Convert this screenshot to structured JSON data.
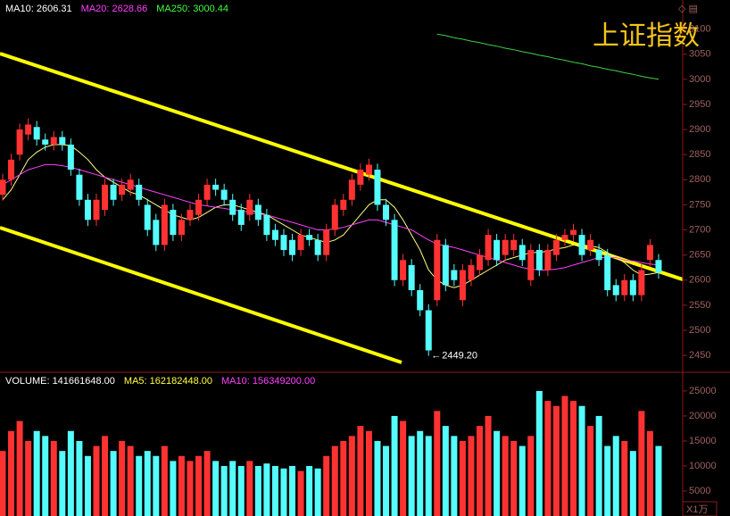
{
  "chart_data": [
    {
      "type": "candlestick",
      "title": "上证指数",
      "legend": [
        {
          "text": "MA10: 2606.31",
          "color": "#ffffff"
        },
        {
          "text": "MA20: 2628.66",
          "color": "#ff40ff"
        },
        {
          "text": "MA250: 3000.44",
          "color": "#40ff40"
        }
      ],
      "up_color": "#ff3232",
      "down_color": "#54fcfc",
      "open": [
        2770,
        2800,
        2850,
        2890,
        2905,
        2880,
        2870,
        2885,
        2870,
        2810,
        2760,
        2720,
        2740,
        2790,
        2770,
        2780,
        2790,
        2750,
        2720,
        2670,
        2740,
        2690,
        2720,
        2730,
        2760,
        2790,
        2780,
        2760,
        2740,
        2730,
        2750,
        2730,
        2700,
        2690,
        2680,
        2660,
        2690,
        2680,
        2650,
        2700,
        2740,
        2760,
        2790,
        2810,
        2820,
        2750,
        2720,
        2600,
        2630,
        2580,
        2540,
        2560,
        2670,
        2620,
        2560,
        2600,
        2620,
        2640,
        2680,
        2650,
        2660,
        2670,
        2600,
        2660,
        2620,
        2650,
        2680,
        2690,
        2690,
        2660,
        2660,
        2650,
        2590,
        2570,
        2600,
        2570,
        2640,
        2640
      ],
      "high": [
        2812,
        2852,
        2912,
        2922,
        2917,
        2892,
        2897,
        2897,
        2882,
        2822,
        2772,
        2772,
        2802,
        2802,
        2802,
        2812,
        2802,
        2762,
        2732,
        2762,
        2752,
        2732,
        2752,
        2772,
        2802,
        2802,
        2792,
        2772,
        2752,
        2772,
        2762,
        2742,
        2712,
        2702,
        2692,
        2702,
        2702,
        2692,
        2712,
        2762,
        2772,
        2812,
        2832,
        2842,
        2832,
        2762,
        2732,
        2652,
        2642,
        2592,
        2552,
        2692,
        2682,
        2632,
        2632,
        2642,
        2662,
        2702,
        2692,
        2692,
        2692,
        2682,
        2672,
        2672,
        2672,
        2692,
        2702,
        2712,
        2702,
        2692,
        2672,
        2662,
        2602,
        2612,
        2612,
        2632,
        2682,
        2652
      ],
      "low": [
        2758,
        2788,
        2838,
        2878,
        2868,
        2858,
        2858,
        2858,
        2808,
        2748,
        2708,
        2708,
        2728,
        2748,
        2758,
        2768,
        2748,
        2688,
        2658,
        2658,
        2678,
        2678,
        2708,
        2718,
        2748,
        2768,
        2748,
        2718,
        2698,
        2718,
        2708,
        2678,
        2668,
        2648,
        2638,
        2648,
        2668,
        2638,
        2638,
        2688,
        2728,
        2748,
        2778,
        2798,
        2738,
        2708,
        2588,
        2588,
        2568,
        2528,
        2449.2,
        2548,
        2578,
        2588,
        2548,
        2588,
        2608,
        2628,
        2628,
        2638,
        2648,
        2628,
        2588,
        2608,
        2608,
        2638,
        2668,
        2678,
        2638,
        2648,
        2628,
        2568,
        2558,
        2558,
        2558,
        2558,
        2628,
        2603
      ],
      "close": [
        2800,
        2840,
        2900,
        2910,
        2880,
        2870,
        2885,
        2870,
        2820,
        2760,
        2720,
        2760,
        2790,
        2760,
        2790,
        2800,
        2760,
        2700,
        2670,
        2750,
        2690,
        2720,
        2740,
        2760,
        2790,
        2780,
        2760,
        2730,
        2710,
        2760,
        2720,
        2690,
        2680,
        2660,
        2650,
        2690,
        2680,
        2650,
        2700,
        2750,
        2760,
        2800,
        2820,
        2830,
        2750,
        2720,
        2600,
        2640,
        2580,
        2540,
        2460,
        2680,
        2590,
        2600,
        2620,
        2630,
        2650,
        2690,
        2640,
        2680,
        2680,
        2640,
        2660,
        2620,
        2660,
        2680,
        2690,
        2700,
        2650,
        2680,
        2640,
        2580,
        2570,
        2600,
        2570,
        2620,
        2670,
        2615
      ],
      "lines": [
        {
          "color": "#ffff80",
          "values": [
            2760,
            2780,
            2810,
            2840,
            2855,
            2865,
            2870,
            2870,
            2868,
            2855,
            2840,
            2820,
            2805,
            2795,
            2785,
            2775,
            2770,
            2760,
            2750,
            2740,
            2730,
            2725,
            2720,
            2725,
            2735,
            2745,
            2750,
            2750,
            2745,
            2740,
            2735,
            2730,
            2720,
            2710,
            2700,
            2690,
            2685,
            2680,
            2675,
            2680,
            2690,
            2710,
            2730,
            2750,
            2760,
            2760,
            2745,
            2720,
            2690,
            2660,
            2620,
            2600,
            2590,
            2585,
            2590,
            2600,
            2610,
            2620,
            2630,
            2640,
            2645,
            2650,
            2655,
            2655,
            2658,
            2662,
            2665,
            2670,
            2670,
            2668,
            2665,
            2655,
            2645,
            2635,
            2620,
            2610,
            2612,
            2615
          ]
        },
        {
          "color": "#ff40ff",
          "values": [
            2790,
            2800,
            2810,
            2820,
            2825,
            2830,
            2830,
            2828,
            2825,
            2820,
            2815,
            2810,
            2805,
            2800,
            2795,
            2790,
            2785,
            2780,
            2775,
            2770,
            2765,
            2760,
            2755,
            2750,
            2748,
            2745,
            2743,
            2740,
            2738,
            2735,
            2732,
            2730,
            2725,
            2720,
            2715,
            2710,
            2705,
            2700,
            2700,
            2702,
            2705,
            2710,
            2715,
            2720,
            2720,
            2715,
            2710,
            2705,
            2700,
            2690,
            2680,
            2672,
            2668,
            2665,
            2660,
            2655,
            2650,
            2645,
            2640,
            2635,
            2630,
            2625,
            2622,
            2620,
            2620,
            2622,
            2625,
            2630,
            2635,
            2640,
            2645,
            2645,
            2645,
            2640,
            2638,
            2635,
            2632,
            2630
          ]
        },
        {
          "color": "#40d040",
          "values": [
            null,
            null,
            null,
            null,
            null,
            null,
            null,
            null,
            null,
            null,
            null,
            null,
            null,
            null,
            null,
            null,
            null,
            null,
            null,
            null,
            null,
            null,
            null,
            null,
            null,
            null,
            null,
            null,
            null,
            null,
            null,
            null,
            null,
            null,
            null,
            null,
            null,
            null,
            null,
            null,
            null,
            null,
            null,
            null,
            null,
            null,
            null,
            null,
            null,
            null,
            null,
            3090,
            3087,
            3083,
            3080,
            3076,
            3073,
            3069,
            3066,
            3062,
            3059,
            3055,
            3052,
            3048,
            3045,
            3041,
            3038,
            3034,
            3031,
            3027,
            3024,
            3020,
            3017,
            3013,
            3010,
            3006,
            3003,
            3000
          ]
        }
      ],
      "annotation": "2449.20",
      "ylim": [
        2420,
        3158
      ],
      "yticks": [
        2450,
        2500,
        2550,
        2600,
        2650,
        2700,
        2750,
        2800,
        2850,
        2900,
        2950,
        3000,
        3050,
        3100
      ]
    },
    {
      "type": "bar",
      "legend": [
        {
          "text": "VOLUME: 141661648.00",
          "color": "#ffffff"
        },
        {
          "text": "MA5: 162182448.00",
          "color": "#ffff40"
        },
        {
          "text": "MA10: 156349200.00",
          "color": "#ff40ff"
        }
      ],
      "unit": "X1万",
      "values": [
        13000,
        17000,
        19000,
        15000,
        17000,
        16000,
        15000,
        13000,
        17000,
        15000,
        12000,
        14000,
        16000,
        13000,
        15000,
        14000,
        12000,
        13000,
        12000,
        14000,
        11000,
        12000,
        11000,
        12000,
        13000,
        11000,
        10000,
        11000,
        10000,
        11000,
        10000,
        10500,
        10000,
        9500,
        10000,
        9000,
        10000,
        9500,
        12000,
        14000,
        15000,
        16000,
        18000,
        17000,
        15000,
        14000,
        20000,
        19000,
        16000,
        17000,
        16000,
        21000,
        18000,
        16000,
        15000,
        16000,
        18000,
        20000,
        17000,
        16000,
        15000,
        14000,
        16000,
        25000,
        23000,
        22000,
        24000,
        23000,
        22000,
        18000,
        20000,
        14000,
        16000,
        15000,
        13000,
        21000,
        17000,
        14000
      ],
      "ylim": [
        0,
        28200
      ],
      "yticks": [
        5000,
        10000,
        15000,
        20000,
        25000
      ]
    }
  ]
}
